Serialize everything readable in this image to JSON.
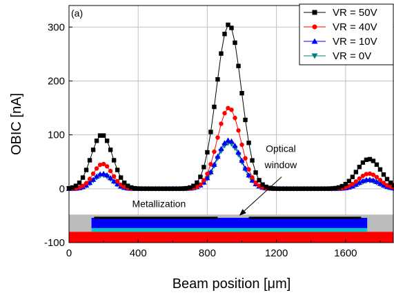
{
  "chart_data": {
    "type": "scatter",
    "panel_label": "(a)",
    "xlabel": "Beam position [μm]",
    "ylabel": "OBIC [nA]",
    "xlim": [
      0,
      1880
    ],
    "ylim": [
      -100,
      340
    ],
    "xticks": [
      0,
      400,
      800,
      1200,
      1600
    ],
    "yticks": [
      -100,
      0,
      100,
      200,
      300
    ],
    "grid": true,
    "legend_position": "top-right",
    "annotations": {
      "optical_window": [
        "Optical",
        "window"
      ],
      "metallization": "Metallization"
    },
    "series": [
      {
        "name": "VR = 50V",
        "color": "#000000",
        "marker": "square",
        "peaks": [
          {
            "center": 190,
            "height": 100,
            "width": 62
          },
          {
            "center": 925,
            "height": 305,
            "width": 72
          },
          {
            "center": 1735,
            "height": 55,
            "width": 70
          }
        ]
      },
      {
        "name": "VR = 40V",
        "color": "#ff0000",
        "marker": "circle",
        "peaks": [
          {
            "center": 195,
            "height": 46,
            "width": 55
          },
          {
            "center": 925,
            "height": 150,
            "width": 68
          },
          {
            "center": 1735,
            "height": 28,
            "width": 62
          }
        ]
      },
      {
        "name": "VR = 10V",
        "color": "#0000ff",
        "marker": "triangle-up",
        "peaks": [
          {
            "center": 195,
            "height": 28,
            "width": 55
          },
          {
            "center": 925,
            "height": 90,
            "width": 72
          },
          {
            "center": 1735,
            "height": 17,
            "width": 60
          }
        ]
      },
      {
        "name": "VR = 0V",
        "color": "#008080",
        "marker": "triangle-down",
        "peaks": [
          {
            "center": 195,
            "height": 25,
            "width": 55
          },
          {
            "center": 925,
            "height": 85,
            "width": 72
          },
          {
            "center": 1735,
            "height": 15,
            "width": 60
          }
        ]
      }
    ],
    "x_start": 0,
    "x_end": 1880,
    "x_step": 20,
    "device_structure": {
      "substrate": {
        "x0": 0,
        "x1": 1880,
        "y0": -100,
        "y1": -80,
        "color": "#ff0000"
      },
      "passivation": {
        "x0": 0,
        "x1": 1880,
        "y0": -82,
        "y1": -48,
        "color": "#bbbbbb"
      },
      "contact_layer": {
        "x0": 130,
        "x1": 1725,
        "y0": -80,
        "y1": -73,
        "color": "#00c8d2"
      },
      "active_region": {
        "x0": 130,
        "x1": 1725,
        "y0": -73,
        "y1": -54,
        "color": "#0000ff"
      },
      "metal_left": {
        "x0": 145,
        "x1": 860,
        "y0": -56,
        "y1": -52,
        "color": "#000000"
      },
      "metal_right": {
        "x0": 1040,
        "x1": 1690,
        "y0": -56,
        "y1": -52,
        "color": "#000000"
      }
    }
  }
}
